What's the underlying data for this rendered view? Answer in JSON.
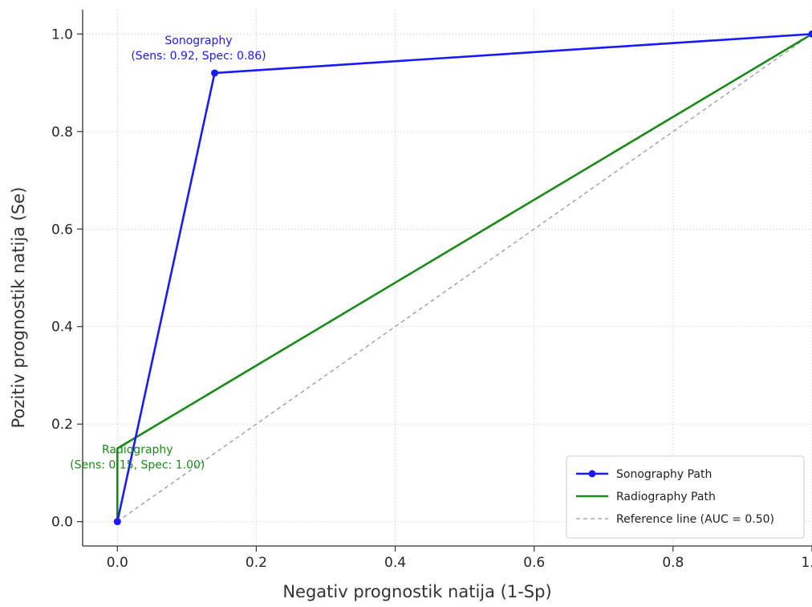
{
  "chart_data": {
    "type": "line",
    "xlabel": "Negativ prognostik natija (1-Sp)",
    "ylabel": "Pozitiv prognostik natija (Se)",
    "xlim": [
      -0.05,
      1.0
    ],
    "ylim": [
      -0.05,
      1.05
    ],
    "x_ticks": [
      "0.0",
      "0.2",
      "0.4",
      "0.6",
      "0.8",
      "1.0"
    ],
    "y_ticks": [
      "0.0",
      "0.2",
      "0.4",
      "0.6",
      "0.8",
      "1.0"
    ],
    "grid": true,
    "legend_position": "bottom-right",
    "series": [
      {
        "name": "Sonography Path",
        "color": "#1a1aff",
        "markers": true,
        "line_style": "solid",
        "points": [
          [
            0.0,
            0.0
          ],
          [
            0.14,
            0.92
          ],
          [
            1.0,
            1.0
          ]
        ]
      },
      {
        "name": "Radiography Path",
        "color": "#1a8a1a",
        "markers": false,
        "line_style": "solid",
        "points": [
          [
            0.0,
            0.0
          ],
          [
            0.0,
            0.15
          ],
          [
            1.0,
            1.0
          ]
        ]
      },
      {
        "name": "Reference line (AUC = 0.50)",
        "color": "#999999",
        "markers": false,
        "line_style": "dashed",
        "points": [
          [
            0.0,
            0.0
          ],
          [
            1.0,
            1.0
          ]
        ]
      }
    ],
    "annotations": [
      {
        "lines": [
          "Sonography",
          "(Sens: 0.92, Spec: 0.86)"
        ],
        "color": "#1a1aff",
        "anchor": [
          0.14,
          0.92
        ]
      },
      {
        "lines": [
          "Radiography",
          "(Sens: 0.15, Spec: 1.00)"
        ],
        "color": "#1a8a1a",
        "anchor": [
          0.0,
          0.15
        ]
      }
    ]
  }
}
